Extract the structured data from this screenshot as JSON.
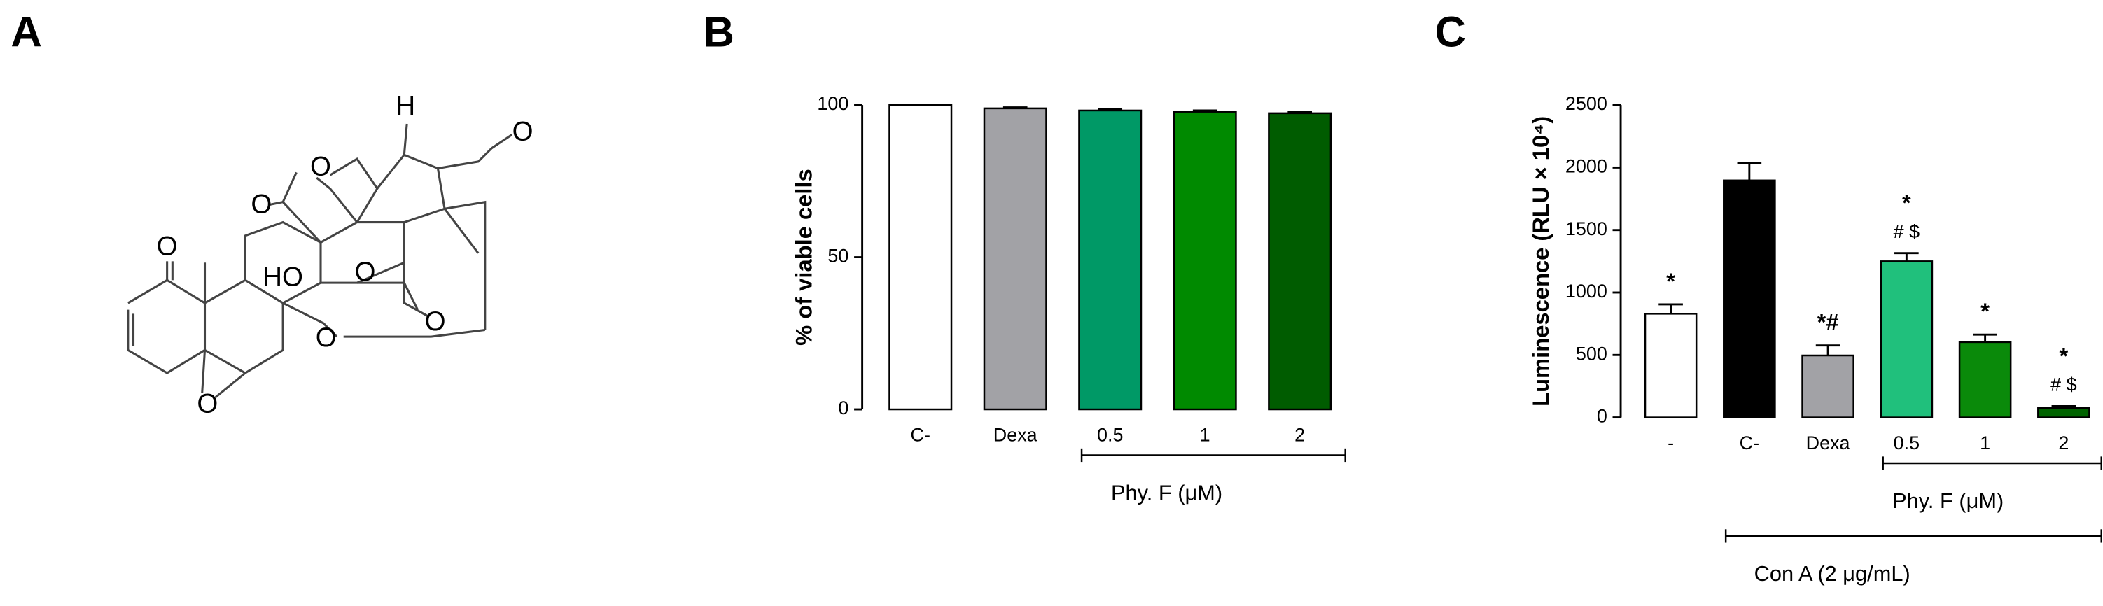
{
  "structure": {
    "panel_label": "A",
    "atom_labels": [
      {
        "text": "H",
        "pos": "h"
      },
      {
        "text": "O",
        "pos": "o1"
      },
      {
        "text": "O",
        "pos": "o2"
      },
      {
        "text": "O",
        "pos": "o3"
      },
      {
        "text": "O",
        "pos": "o4"
      },
      {
        "text": "HO",
        "pos": "ho"
      },
      {
        "text": "O",
        "pos": "o5"
      },
      {
        "text": "O",
        "pos": "o6"
      },
      {
        "text": "O",
        "pos": "o7"
      },
      {
        "text": "O",
        "pos": "o8"
      }
    ]
  },
  "chart_data": [
    {
      "type": "bar",
      "panel_label": "B",
      "ylabel": "% of viable cells",
      "categories": [
        "C-",
        "Dexa",
        "0.5",
        "1",
        "2"
      ],
      "values": [
        100,
        98.9,
        98.2,
        97.8,
        97.3
      ],
      "errors": [
        0,
        0.3,
        0.5,
        0.4,
        0.5
      ],
      "colors": [
        "#ffffff",
        "#a2a2a6",
        "#009966",
        "#008a00",
        "#005c00"
      ],
      "ylim": [
        0,
        100
      ],
      "yticks": [
        0,
        50,
        100
      ],
      "brackets": [
        {
          "label": "Phy. F (μM)",
          "from": 2,
          "to": 4
        }
      ]
    },
    {
      "type": "bar",
      "panel_label": "C",
      "ylabel": "Luminescence (RLU × 10⁴)",
      "categories": [
        "-",
        "C-",
        "Dexa",
        "0.5",
        "1",
        "2"
      ],
      "values": [
        830,
        1897,
        496,
        1250,
        603,
        75
      ],
      "errors": [
        75,
        140,
        80,
        65,
        60,
        15
      ],
      "colors": [
        "#ffffff",
        "#000000",
        "#a2a2a6",
        "#20c07c",
        "#0a8a0a",
        "#006400"
      ],
      "ylim": [
        0,
        2500
      ],
      "yticks": [
        0,
        500,
        1000,
        1500,
        2000,
        2500
      ],
      "annotations_top": [
        "*",
        null,
        "*#",
        "*",
        "*",
        "*"
      ],
      "annotations_second": [
        null,
        null,
        null,
        "# $",
        null,
        "# $"
      ],
      "brackets": [
        {
          "label": "Phy. F (μM)",
          "from": 3,
          "to": 5
        },
        {
          "label": "Con A (2 μg/mL)",
          "from": 1,
          "to": 5
        }
      ]
    }
  ]
}
